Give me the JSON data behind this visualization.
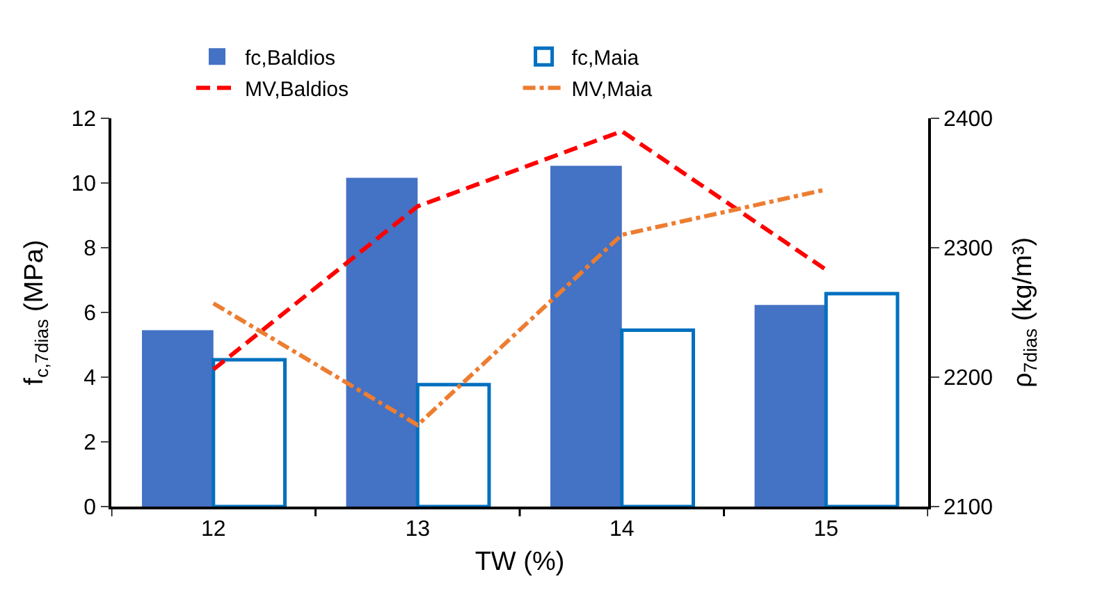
{
  "chart_data": {
    "type": "bar",
    "categories": [
      "12",
      "13",
      "14",
      "15"
    ],
    "xlabel": "TW (%)",
    "ylabel": "f$_{c,7dias}$ (MPa)",
    "y2label": "ρ$_{7dias}$ (kg/m³)",
    "ylim": [
      0,
      12
    ],
    "yticks": [
      0,
      2,
      4,
      6,
      8,
      10,
      12
    ],
    "y2lim": [
      2100,
      2400
    ],
    "y2ticks": [
      2100,
      2200,
      2300,
      2400
    ],
    "legend": "top",
    "marker": "none",
    "series": [
      {
        "name": "fc,Baldios",
        "color": "#4472c4",
        "values": [
          5.45,
          10.16,
          10.53,
          6.23
        ]
      },
      {
        "name": "fc,Maia",
        "type": "bar",
        "color": "#0070c0",
        "line_style": "dashed",
        "values": [
          4.54,
          3.77,
          5.45,
          6.58
        ]
      },
      {
        "name": "MV,Baldios",
        "type": "line",
        "axis": "y2",
        "color": "#ff0000",
        "line_style": "dashed",
        "values": [
          2206,
          2332,
          2390,
          2283
        ]
      },
      {
        "name": "MV,Maia",
        "type": "line",
        "axis": "y2",
        "color": "#ed7d31",
        "line_style": "dashdot",
        "values": [
          2257,
          2163,
          2310,
          2345
        ]
      }
    ]
  }
}
